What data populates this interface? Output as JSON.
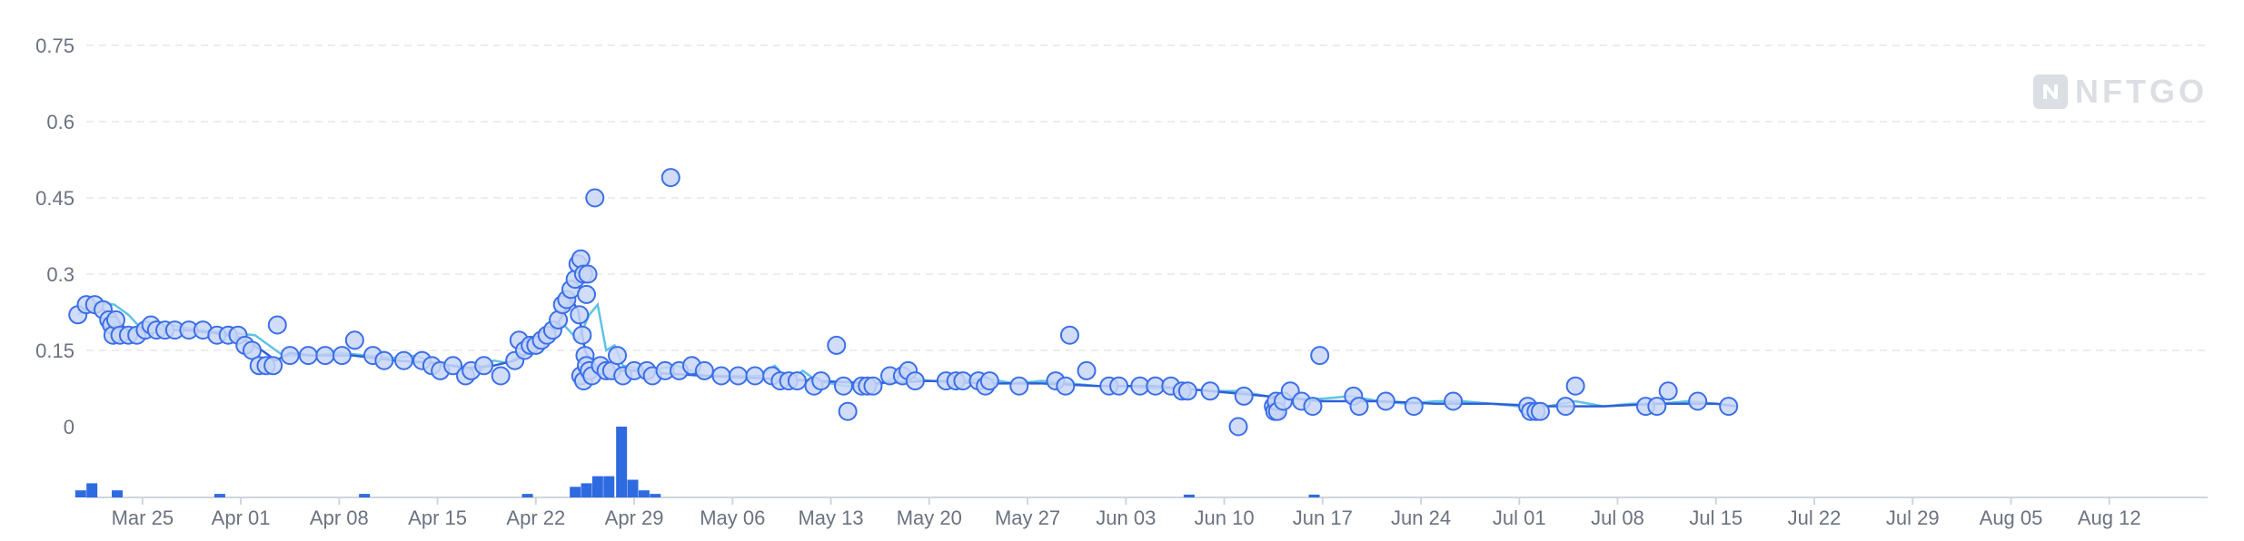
{
  "watermark": {
    "text": "NFTGO",
    "icon": "nftgo-logo-icon"
  },
  "chart_data": {
    "type": "scatter",
    "ylim": [
      0,
      0.75
    ],
    "yticks": [
      "0",
      "0.15",
      "0.3",
      "0.45",
      "0.6",
      "0.75"
    ],
    "xticks": [
      "Mar 25",
      "Apr 01",
      "Apr 08",
      "Apr 15",
      "Apr 22",
      "Apr 29",
      "May 06",
      "May 13",
      "May 20",
      "May 27",
      "Jun 03",
      "Jun 10",
      "Jun 17",
      "Jun 24",
      "Jul 01",
      "Jul 08",
      "Jul 15",
      "Jul 22",
      "Jul 29",
      "Aug 05",
      "Aug 12"
    ],
    "x_day_range": [
      -4,
      147
    ],
    "grid": true,
    "colors": {
      "points": "#3b6fe8",
      "point_fill": "#c8d6f7",
      "trend": "#2f5fd8",
      "avg": "#5fc3e4",
      "volume": "#2f6be0"
    },
    "points": [
      [
        -4.6,
        0.22
      ],
      [
        -4,
        0.24
      ],
      [
        -3.4,
        0.24
      ],
      [
        -2.8,
        0.23
      ],
      [
        -2.4,
        0.21
      ],
      [
        -2.2,
        0.2
      ],
      [
        -2.1,
        0.18
      ],
      [
        -1.9,
        0.21
      ],
      [
        -1.6,
        0.18
      ],
      [
        -1,
        0.18
      ],
      [
        -0.4,
        0.18
      ],
      [
        0.2,
        0.19
      ],
      [
        0.6,
        0.2
      ],
      [
        1,
        0.19
      ],
      [
        1.6,
        0.19
      ],
      [
        2.3,
        0.19
      ],
      [
        3.3,
        0.19
      ],
      [
        4.3,
        0.19
      ],
      [
        5.3,
        0.18
      ],
      [
        6.1,
        0.18
      ],
      [
        6.8,
        0.18
      ],
      [
        7.3,
        0.16
      ],
      [
        7.8,
        0.15
      ],
      [
        8.3,
        0.12
      ],
      [
        8.8,
        0.12
      ],
      [
        9.3,
        0.12
      ],
      [
        9.6,
        0.2
      ],
      [
        10.5,
        0.14
      ],
      [
        11.8,
        0.14
      ],
      [
        13,
        0.14
      ],
      [
        14.2,
        0.14
      ],
      [
        15.1,
        0.17
      ],
      [
        16.4,
        0.14
      ],
      [
        17.2,
        0.13
      ],
      [
        18.6,
        0.13
      ],
      [
        19.9,
        0.13
      ],
      [
        20.6,
        0.12
      ],
      [
        21.2,
        0.11
      ],
      [
        22.1,
        0.12
      ],
      [
        23,
        0.1
      ],
      [
        23.4,
        0.11
      ],
      [
        24.3,
        0.12
      ],
      [
        25.5,
        0.1
      ],
      [
        26.5,
        0.13
      ],
      [
        26.8,
        0.17
      ],
      [
        27.2,
        0.15
      ],
      [
        27.6,
        0.16
      ],
      [
        28,
        0.16
      ],
      [
        28.4,
        0.17
      ],
      [
        28.8,
        0.18
      ],
      [
        29.2,
        0.19
      ],
      [
        29.6,
        0.21
      ],
      [
        29.9,
        0.24
      ],
      [
        30.2,
        0.25
      ],
      [
        30.5,
        0.27
      ],
      [
        30.8,
        0.29
      ],
      [
        31,
        0.32
      ],
      [
        31.2,
        0.33
      ],
      [
        31.4,
        0.3
      ],
      [
        31.6,
        0.26
      ],
      [
        31.1,
        0.22
      ],
      [
        31.3,
        0.18
      ],
      [
        31.5,
        0.14
      ],
      [
        31.2,
        0.1
      ],
      [
        31.4,
        0.09
      ],
      [
        31.6,
        0.12
      ],
      [
        31.8,
        0.11
      ],
      [
        32,
        0.1
      ],
      [
        31.7,
        0.3
      ],
      [
        32.2,
        0.45
      ],
      [
        32.6,
        0.12
      ],
      [
        33,
        0.11
      ],
      [
        33.4,
        0.11
      ],
      [
        33.8,
        0.14
      ],
      [
        34.2,
        0.1
      ],
      [
        35,
        0.11
      ],
      [
        35.9,
        0.11
      ],
      [
        36.3,
        0.1
      ],
      [
        37.2,
        0.11
      ],
      [
        37.6,
        0.49
      ],
      [
        38.2,
        0.11
      ],
      [
        39.1,
        0.12
      ],
      [
        40,
        0.11
      ],
      [
        41.2,
        0.1
      ],
      [
        42.4,
        0.1
      ],
      [
        43.6,
        0.1
      ],
      [
        44.8,
        0.1
      ],
      [
        45.4,
        0.09
      ],
      [
        46,
        0.09
      ],
      [
        46.6,
        0.09
      ],
      [
        47.8,
        0.08
      ],
      [
        48.3,
        0.09
      ],
      [
        49.4,
        0.16
      ],
      [
        49.9,
        0.08
      ],
      [
        50.2,
        0.03
      ],
      [
        51.2,
        0.08
      ],
      [
        51.6,
        0.08
      ],
      [
        52,
        0.08
      ],
      [
        53.2,
        0.1
      ],
      [
        54.1,
        0.1
      ],
      [
        54.5,
        0.11
      ],
      [
        55,
        0.09
      ],
      [
        57.2,
        0.09
      ],
      [
        57.9,
        0.09
      ],
      [
        58.4,
        0.09
      ],
      [
        59.5,
        0.09
      ],
      [
        60,
        0.08
      ],
      [
        60.3,
        0.09
      ],
      [
        62.4,
        0.08
      ],
      [
        65,
        0.09
      ],
      [
        65.7,
        0.08
      ],
      [
        66,
        0.18
      ],
      [
        67.2,
        0.11
      ],
      [
        68.8,
        0.08
      ],
      [
        69.5,
        0.08
      ],
      [
        71,
        0.08
      ],
      [
        72.1,
        0.08
      ],
      [
        73.2,
        0.08
      ],
      [
        74,
        0.07
      ],
      [
        74.4,
        0.07
      ],
      [
        76,
        0.07
      ],
      [
        78,
        0.0
      ],
      [
        78.4,
        0.06
      ],
      [
        80.5,
        0.04
      ],
      [
        80.6,
        0.03
      ],
      [
        80.7,
        0.05
      ],
      [
        80.8,
        0.03
      ],
      [
        81.2,
        0.05
      ],
      [
        81.7,
        0.07
      ],
      [
        82.5,
        0.05
      ],
      [
        83.3,
        0.04
      ],
      [
        83.8,
        0.14
      ],
      [
        86.2,
        0.06
      ],
      [
        86.6,
        0.04
      ],
      [
        88.5,
        0.05
      ],
      [
        90.5,
        0.04
      ],
      [
        93.3,
        0.05
      ],
      [
        98.6,
        0.04
      ],
      [
        98.8,
        0.03
      ],
      [
        99.2,
        0.03
      ],
      [
        99.5,
        0.03
      ],
      [
        101.3,
        0.04
      ],
      [
        102,
        0.08
      ],
      [
        107,
        0.04
      ],
      [
        107.8,
        0.04
      ],
      [
        108.6,
        0.07
      ],
      [
        110.7,
        0.05
      ],
      [
        112.9,
        0.04
      ]
    ],
    "trend": [
      [
        -4.6,
        0.23
      ],
      [
        -3,
        0.235
      ],
      [
        -2,
        0.21
      ],
      [
        -1,
        0.19
      ],
      [
        1,
        0.19
      ],
      [
        3,
        0.19
      ],
      [
        5,
        0.185
      ],
      [
        7,
        0.175
      ],
      [
        8.5,
        0.15
      ],
      [
        9.5,
        0.13
      ],
      [
        10.5,
        0.145
      ],
      [
        12,
        0.14
      ],
      [
        15,
        0.14
      ],
      [
        18,
        0.13
      ],
      [
        21,
        0.125
      ],
      [
        23,
        0.115
      ],
      [
        25,
        0.12
      ],
      [
        26.5,
        0.13
      ],
      [
        27.5,
        0.145
      ],
      [
        28.5,
        0.17
      ],
      [
        29.5,
        0.2
      ],
      [
        30.5,
        0.25
      ],
      [
        31,
        0.23
      ],
      [
        31.5,
        0.15
      ],
      [
        32,
        0.12
      ],
      [
        33,
        0.11
      ],
      [
        35,
        0.11
      ],
      [
        37,
        0.105
      ],
      [
        40,
        0.1
      ],
      [
        44,
        0.095
      ],
      [
        48,
        0.09
      ],
      [
        52,
        0.085
      ],
      [
        56,
        0.09
      ],
      [
        60,
        0.085
      ],
      [
        64,
        0.085
      ],
      [
        68,
        0.08
      ],
      [
        72,
        0.08
      ],
      [
        76,
        0.07
      ],
      [
        80,
        0.06
      ],
      [
        84,
        0.05
      ],
      [
        88,
        0.05
      ],
      [
        92,
        0.045
      ],
      [
        96,
        0.045
      ],
      [
        100,
        0.04
      ],
      [
        104,
        0.04
      ],
      [
        108,
        0.045
      ],
      [
        112,
        0.045
      ],
      [
        113.5,
        0.04
      ]
    ],
    "avg": [
      [
        -4.6,
        0.22
      ],
      [
        -3.5,
        0.245
      ],
      [
        -2,
        0.24
      ],
      [
        -1,
        0.22
      ],
      [
        0,
        0.19
      ],
      [
        2,
        0.2
      ],
      [
        4,
        0.19
      ],
      [
        6,
        0.185
      ],
      [
        8,
        0.18
      ],
      [
        9,
        0.16
      ],
      [
        10,
        0.14
      ],
      [
        12,
        0.14
      ],
      [
        14,
        0.145
      ],
      [
        16,
        0.14
      ],
      [
        18,
        0.135
      ],
      [
        19.5,
        0.14
      ],
      [
        21,
        0.12
      ],
      [
        22.5,
        0.12
      ],
      [
        24,
        0.11
      ],
      [
        25,
        0.13
      ],
      [
        26,
        0.125
      ],
      [
        27,
        0.14
      ],
      [
        28,
        0.15
      ],
      [
        29,
        0.18
      ],
      [
        30,
        0.2
      ],
      [
        31,
        0.17
      ],
      [
        31.8,
        0.22
      ],
      [
        32.4,
        0.24
      ],
      [
        33,
        0.15
      ],
      [
        33.6,
        0.16
      ],
      [
        34.2,
        0.12
      ],
      [
        36,
        0.11
      ],
      [
        38,
        0.12
      ],
      [
        40,
        0.1
      ],
      [
        42,
        0.1
      ],
      [
        44,
        0.1
      ],
      [
        45,
        0.12
      ],
      [
        46,
        0.09
      ],
      [
        47,
        0.11
      ],
      [
        48,
        0.09
      ],
      [
        50,
        0.08
      ],
      [
        52,
        0.08
      ],
      [
        54,
        0.1
      ],
      [
        56,
        0.09
      ],
      [
        58,
        0.09
      ],
      [
        60,
        0.095
      ],
      [
        62,
        0.085
      ],
      [
        64,
        0.09
      ],
      [
        66,
        0.085
      ],
      [
        68,
        0.08
      ],
      [
        70,
        0.08
      ],
      [
        72,
        0.075
      ],
      [
        74,
        0.075
      ],
      [
        76,
        0.07
      ],
      [
        78,
        0.07
      ],
      [
        80,
        0.06
      ],
      [
        82,
        0.055
      ],
      [
        84,
        0.055
      ],
      [
        86,
        0.06
      ],
      [
        88,
        0.05
      ],
      [
        90,
        0.045
      ],
      [
        92,
        0.05
      ],
      [
        94,
        0.05
      ],
      [
        96,
        0.045
      ],
      [
        98,
        0.04
      ],
      [
        100,
        0.04
      ],
      [
        102,
        0.05
      ],
      [
        104,
        0.04
      ],
      [
        106,
        0.045
      ],
      [
        108,
        0.045
      ],
      [
        110,
        0.05
      ],
      [
        112,
        0.045
      ],
      [
        113.5,
        0.04
      ]
    ],
    "volume": [
      [
        -4.4,
        0.1
      ],
      [
        -3.6,
        0.2
      ],
      [
        -1.8,
        0.1
      ],
      [
        5.5,
        0.05
      ],
      [
        15.8,
        0.05
      ],
      [
        27.4,
        0.05
      ],
      [
        30.8,
        0.15
      ],
      [
        31.6,
        0.2
      ],
      [
        32.4,
        0.3
      ],
      [
        33.2,
        0.3
      ],
      [
        34.1,
        1.0
      ],
      [
        34.9,
        0.25
      ],
      [
        35.7,
        0.1
      ],
      [
        36.5,
        0.05
      ],
      [
        74.5,
        0.04
      ],
      [
        83.4,
        0.04
      ]
    ]
  }
}
